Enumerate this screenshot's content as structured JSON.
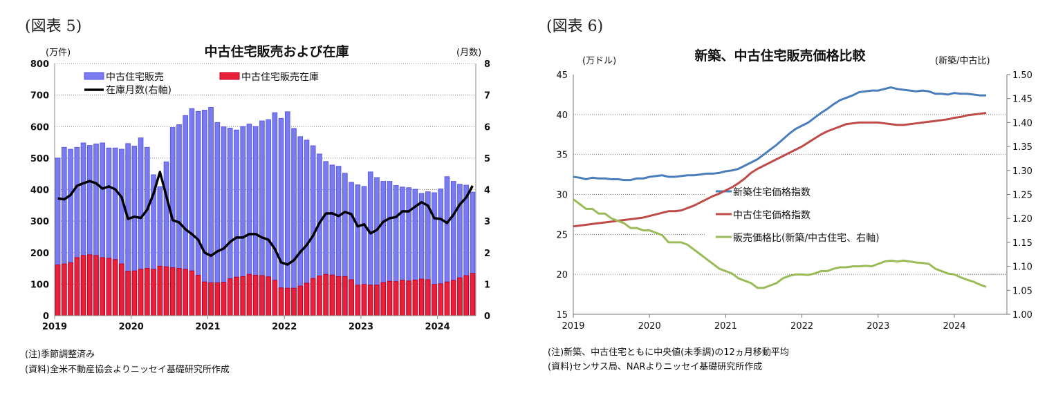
{
  "figures": [
    {
      "label": "(図表 5)",
      "note": "(注)季節調整済み",
      "source": "(資料)全米不動産協会よりニッセイ基礎研究所作成"
    },
    {
      "label": "(図表 6)",
      "note": "(注)新築、中古住宅ともに中央値(未季調)の12ヵ月移動平均",
      "source": "(資料)センサス局、NARよりニッセイ基礎研究所作成"
    }
  ],
  "chart_data": [
    {
      "type": "bar",
      "title": "中古住宅販売および在庫",
      "ylabel": "(万件)",
      "y2label": "(月数)",
      "ylim": [
        0,
        800
      ],
      "y2lim": [
        0,
        8
      ],
      "yticks": [
        "0",
        "100",
        "200",
        "300",
        "400",
        "500",
        "600",
        "700",
        "800"
      ],
      "y2ticks": [
        "0",
        "1",
        "2",
        "3",
        "4",
        "5",
        "6",
        "7",
        "8"
      ],
      "xticks": [
        "2019",
        "2020",
        "2021",
        "2022",
        "2023",
        "2024"
      ],
      "x_start": "2019-01",
      "frequency": "monthly",
      "grid": true,
      "legend": "top-left",
      "colors": {
        "sales": "#7b7bf0",
        "inventory": "#e8203a",
        "months": "#000000"
      },
      "series": [
        {
          "name": "中古住宅販売",
          "kind": "bar",
          "values": [
            500,
            534,
            528,
            534,
            548,
            540,
            545,
            548,
            532,
            532,
            528,
            546,
            538,
            564,
            534,
            447,
            409,
            488,
            597,
            606,
            635,
            657,
            648,
            652,
            661,
            613,
            599,
            595,
            589,
            600,
            608,
            600,
            618,
            622,
            644,
            626,
            647,
            594,
            568,
            557,
            539,
            513,
            489,
            478,
            474,
            452,
            423,
            415,
            410,
            456,
            438,
            426,
            426,
            413,
            408,
            406,
            401,
            388,
            393,
            390,
            402,
            441,
            426,
            417,
            414,
            392
          ]
        },
        {
          "name": "中古住宅販売在庫",
          "kind": "bar",
          "values": [
            161,
            164,
            168,
            184,
            191,
            193,
            191,
            184,
            182,
            178,
            164,
            141,
            142,
            147,
            150,
            147,
            157,
            155,
            152,
            150,
            147,
            142,
            128,
            107,
            104,
            104,
            106,
            117,
            122,
            124,
            131,
            128,
            127,
            123,
            112,
            88,
            87,
            87,
            94,
            103,
            118,
            126,
            131,
            129,
            124,
            124,
            114,
            97,
            99,
            97,
            97,
            105,
            109,
            108,
            112,
            110,
            113,
            116,
            114,
            99,
            101,
            107,
            112,
            120,
            127,
            134
          ]
        },
        {
          "name": "在庫月数(右軸)",
          "kind": "line",
          "axis": "right",
          "values": [
            3.72,
            3.69,
            3.83,
            4.12,
            4.2,
            4.27,
            4.2,
            4.03,
            4.1,
            4.01,
            3.76,
            3.07,
            3.14,
            3.1,
            3.36,
            3.87,
            4.56,
            3.8,
            3.03,
            2.96,
            2.74,
            2.59,
            2.41,
            2.0,
            1.9,
            2.04,
            2.13,
            2.34,
            2.48,
            2.48,
            2.59,
            2.59,
            2.48,
            2.41,
            2.12,
            1.69,
            1.62,
            1.76,
            2.02,
            2.24,
            2.54,
            2.94,
            3.24,
            3.25,
            3.16,
            3.29,
            3.22,
            2.83,
            2.9,
            2.61,
            2.72,
            2.98,
            3.09,
            3.13,
            3.31,
            3.31,
            3.46,
            3.6,
            3.49,
            3.09,
            3.07,
            2.94,
            3.2,
            3.53,
            3.75,
            4.12
          ]
        }
      ]
    },
    {
      "type": "line",
      "title": "新築、中古住宅販売価格比較",
      "ylabel": "(万ドル)",
      "y2label": "(新築/中古比)",
      "ylim": [
        15,
        45
      ],
      "y2lim": [
        1.0,
        1.5
      ],
      "yticks": [
        "15",
        "20",
        "25",
        "30",
        "35",
        "40",
        "45"
      ],
      "y2ticks": [
        "1.00",
        "1.05",
        "1.10",
        "1.15",
        "1.20",
        "1.25",
        "1.30",
        "1.35",
        "1.40",
        "1.45",
        "1.50"
      ],
      "xticks": [
        "2019",
        "2020",
        "2021",
        "2022",
        "2023",
        "2024"
      ],
      "x_start": "2019-01",
      "frequency": "monthly",
      "grid": true,
      "legend": "center-right",
      "series": [
        {
          "name": "新築住宅価格指数",
          "color": "#4a7ebb",
          "axis": "left",
          "values": [
            32.2,
            32.1,
            31.9,
            32.1,
            32.0,
            32.0,
            31.9,
            31.9,
            31.8,
            31.8,
            32.0,
            32.0,
            32.2,
            32.3,
            32.4,
            32.2,
            32.2,
            32.3,
            32.4,
            32.4,
            32.5,
            32.6,
            32.6,
            32.7,
            32.9,
            33.0,
            33.2,
            33.6,
            34.0,
            34.4,
            35.0,
            35.6,
            36.2,
            36.9,
            37.6,
            38.2,
            38.6,
            39.0,
            39.6,
            40.2,
            40.7,
            41.3,
            41.8,
            42.1,
            42.4,
            42.8,
            42.9,
            43.0,
            43.0,
            43.2,
            43.4,
            43.2,
            43.1,
            43.0,
            42.9,
            43.0,
            42.9,
            42.6,
            42.6,
            42.5,
            42.7,
            42.6,
            42.6,
            42.5,
            42.4,
            42.4
          ]
        },
        {
          "name": "中古住宅価格指数",
          "color": "#be4b48",
          "axis": "left",
          "values": [
            26.0,
            26.1,
            26.2,
            26.3,
            26.4,
            26.5,
            26.6,
            26.7,
            26.8,
            26.9,
            27.0,
            27.1,
            27.3,
            27.5,
            27.7,
            27.9,
            27.9,
            28.0,
            28.3,
            28.6,
            29.0,
            29.4,
            29.8,
            30.1,
            30.5,
            30.9,
            31.4,
            32.0,
            32.7,
            33.2,
            33.6,
            34.0,
            34.4,
            34.8,
            35.2,
            35.6,
            36.0,
            36.5,
            37.0,
            37.5,
            37.9,
            38.2,
            38.5,
            38.8,
            38.9,
            39.0,
            39.0,
            39.0,
            39.0,
            38.9,
            38.8,
            38.7,
            38.7,
            38.8,
            38.9,
            39.0,
            39.1,
            39.2,
            39.3,
            39.4,
            39.6,
            39.7,
            39.9,
            40.0,
            40.1,
            40.2
          ]
        },
        {
          "name": "販売価格比(新築/中古住宅、右軸)",
          "color": "#9bbb59",
          "axis": "right",
          "values": [
            1.24,
            1.23,
            1.22,
            1.22,
            1.21,
            1.21,
            1.2,
            1.195,
            1.19,
            1.18,
            1.18,
            1.175,
            1.175,
            1.17,
            1.165,
            1.15,
            1.15,
            1.15,
            1.145,
            1.135,
            1.125,
            1.115,
            1.105,
            1.095,
            1.09,
            1.085,
            1.075,
            1.07,
            1.065,
            1.055,
            1.055,
            1.06,
            1.065,
            1.075,
            1.08,
            1.083,
            1.083,
            1.082,
            1.085,
            1.09,
            1.09,
            1.095,
            1.098,
            1.098,
            1.1,
            1.1,
            1.101,
            1.1,
            1.105,
            1.11,
            1.112,
            1.11,
            1.112,
            1.11,
            1.108,
            1.107,
            1.105,
            1.095,
            1.09,
            1.085,
            1.083,
            1.077,
            1.072,
            1.068,
            1.062,
            1.057
          ]
        }
      ]
    }
  ]
}
